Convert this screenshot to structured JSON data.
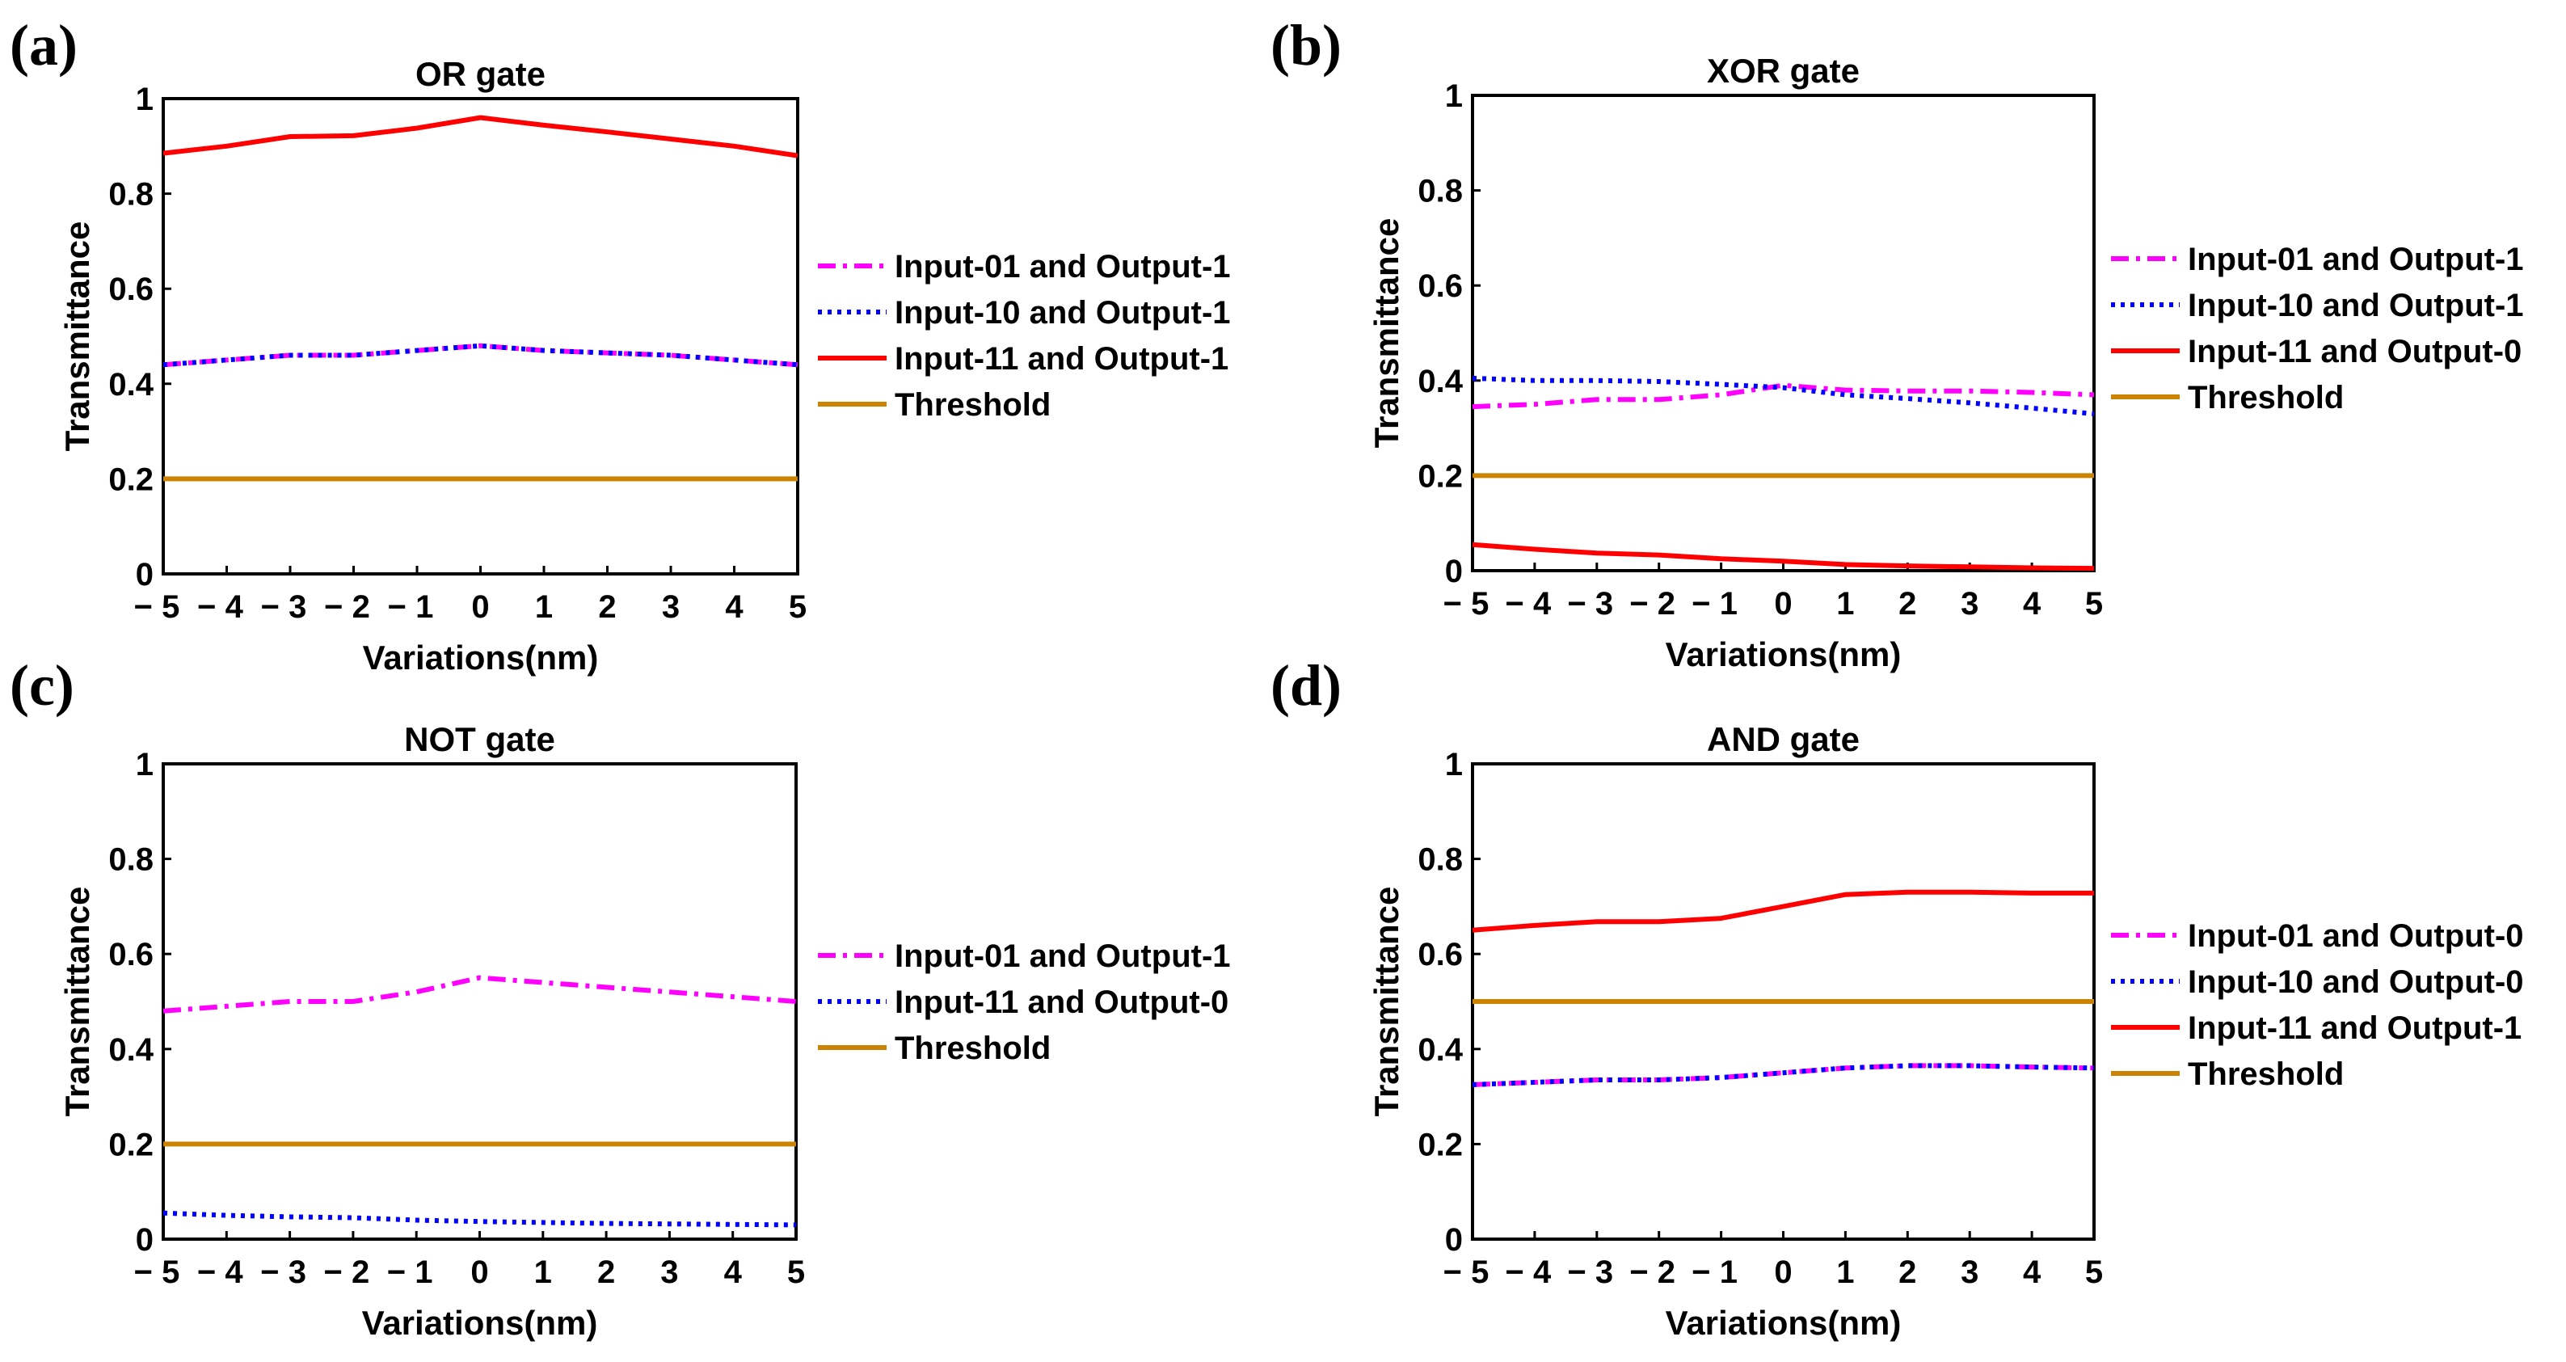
{
  "chart_data": [
    {
      "panel_label": "(a)",
      "type": "line",
      "title": "OR gate",
      "xlabel": "Variations(nm)",
      "ylabel": "Transmittance",
      "xlim": [
        -5,
        5
      ],
      "ylim": [
        0,
        1
      ],
      "x_ticks": [
        "− 5",
        "− 4",
        "− 3",
        "− 2",
        "− 1",
        "0",
        "1",
        "2",
        "3",
        "4",
        "5"
      ],
      "y_ticks": [
        "0",
        "0.2",
        "0.4",
        "0.6",
        "0.8",
        "1"
      ],
      "legend_position": "right",
      "x": [
        -5,
        -4,
        -3,
        -2,
        -1,
        0,
        1,
        2,
        3,
        4,
        5
      ],
      "series": [
        {
          "name": "Input-01 and Output-1",
          "color": "#ff00ff",
          "style": "dashdot",
          "values": [
            0.44,
            0.45,
            0.46,
            0.46,
            0.47,
            0.48,
            0.47,
            0.465,
            0.46,
            0.45,
            0.44
          ]
        },
        {
          "name": "Input-10 and Output-1",
          "color": "#0000ff",
          "style": "dotted",
          "values": [
            0.44,
            0.45,
            0.46,
            0.46,
            0.47,
            0.48,
            0.47,
            0.465,
            0.46,
            0.45,
            0.44
          ]
        },
        {
          "name": "Input-11 and Output-1",
          "color": "#ff0000",
          "style": "solid",
          "values": [
            0.885,
            0.9,
            0.92,
            0.922,
            0.938,
            0.96,
            0.944,
            0.93,
            0.915,
            0.9,
            0.88
          ]
        },
        {
          "name": "Threshold",
          "color": "#cc8400",
          "style": "solid",
          "values": [
            0.2,
            0.2,
            0.2,
            0.2,
            0.2,
            0.2,
            0.2,
            0.2,
            0.2,
            0.2,
            0.2
          ]
        }
      ]
    },
    {
      "panel_label": "(b)",
      "type": "line",
      "title": "XOR gate",
      "xlabel": "Variations(nm)",
      "ylabel": "Transmittance",
      "xlim": [
        -5,
        5
      ],
      "ylim": [
        0,
        1
      ],
      "x_ticks": [
        "− 5",
        "− 4",
        "− 3",
        "− 2",
        "− 1",
        "0",
        "1",
        "2",
        "3",
        "4",
        "5"
      ],
      "y_ticks": [
        "0",
        "0.2",
        "0.4",
        "0.6",
        "0.8",
        "1"
      ],
      "legend_position": "right",
      "x": [
        -5,
        -4,
        -3,
        -2,
        -1,
        0,
        1,
        2,
        3,
        4,
        5
      ],
      "series": [
        {
          "name": "Input-01 and Output-1",
          "color": "#ff00ff",
          "style": "dashdot",
          "values": [
            0.345,
            0.35,
            0.36,
            0.36,
            0.37,
            0.39,
            0.38,
            0.378,
            0.378,
            0.375,
            0.37
          ]
        },
        {
          "name": "Input-10 and Output-1",
          "color": "#0000ff",
          "style": "dotted",
          "values": [
            0.405,
            0.4,
            0.4,
            0.398,
            0.392,
            0.385,
            0.37,
            0.362,
            0.353,
            0.342,
            0.33
          ]
        },
        {
          "name": "Input-11 and Output-0",
          "color": "#ff0000",
          "style": "solid",
          "values": [
            0.055,
            0.045,
            0.037,
            0.033,
            0.025,
            0.02,
            0.013,
            0.01,
            0.008,
            0.006,
            0.005
          ]
        },
        {
          "name": "Threshold",
          "color": "#cc8400",
          "style": "solid",
          "values": [
            0.2,
            0.2,
            0.2,
            0.2,
            0.2,
            0.2,
            0.2,
            0.2,
            0.2,
            0.2,
            0.2
          ]
        }
      ]
    },
    {
      "panel_label": "(c)",
      "type": "line",
      "title": "NOT gate",
      "xlabel": "Variations(nm)",
      "ylabel": "Transmittance",
      "xlim": [
        -5,
        5
      ],
      "ylim": [
        0,
        1
      ],
      "x_ticks": [
        "− 5",
        "− 4",
        "− 3",
        "− 2",
        "− 1",
        "0",
        "1",
        "2",
        "3",
        "4",
        "5"
      ],
      "y_ticks": [
        "0",
        "0.2",
        "0.4",
        "0.6",
        "0.8",
        "1"
      ],
      "legend_position": "right",
      "x": [
        -5,
        -4,
        -3,
        -2,
        -1,
        0,
        1,
        2,
        3,
        4,
        5
      ],
      "series": [
        {
          "name": "Input-01 and Output-1",
          "color": "#ff00ff",
          "style": "dashdot",
          "values": [
            0.48,
            0.49,
            0.5,
            0.5,
            0.52,
            0.55,
            0.54,
            0.53,
            0.52,
            0.51,
            0.5
          ]
        },
        {
          "name": "Input-11 and Output-0",
          "color": "#0000ff",
          "style": "dotted",
          "values": [
            0.055,
            0.05,
            0.047,
            0.045,
            0.04,
            0.037,
            0.035,
            0.033,
            0.032,
            0.031,
            0.03
          ]
        },
        {
          "name": "Threshold",
          "color": "#cc8400",
          "style": "solid",
          "values": [
            0.2,
            0.2,
            0.2,
            0.2,
            0.2,
            0.2,
            0.2,
            0.2,
            0.2,
            0.2,
            0.2
          ]
        }
      ]
    },
    {
      "panel_label": "(d)",
      "type": "line",
      "title": "AND gate",
      "xlabel": "Variations(nm)",
      "ylabel": "Transmittance",
      "xlim": [
        -5,
        5
      ],
      "ylim": [
        0,
        1
      ],
      "x_ticks": [
        "− 5",
        "− 4",
        "− 3",
        "− 2",
        "− 1",
        "0",
        "1",
        "2",
        "3",
        "4",
        "5"
      ],
      "y_ticks": [
        "0",
        "0.2",
        "0.4",
        "0.6",
        "0.8",
        "1"
      ],
      "legend_position": "right",
      "x": [
        -5,
        -4,
        -3,
        -2,
        -1,
        0,
        1,
        2,
        3,
        4,
        5
      ],
      "series": [
        {
          "name": "Input-01 and Output-0",
          "color": "#ff00ff",
          "style": "dashdot",
          "values": [
            0.325,
            0.33,
            0.335,
            0.335,
            0.34,
            0.35,
            0.36,
            0.365,
            0.365,
            0.362,
            0.36
          ]
        },
        {
          "name": "Input-10 and Output-0",
          "color": "#0000ff",
          "style": "dotted",
          "values": [
            0.325,
            0.33,
            0.335,
            0.335,
            0.34,
            0.35,
            0.36,
            0.365,
            0.365,
            0.362,
            0.36
          ]
        },
        {
          "name": "Input-11 and Output-1",
          "color": "#ff0000",
          "style": "solid",
          "values": [
            0.65,
            0.66,
            0.668,
            0.668,
            0.675,
            0.7,
            0.725,
            0.73,
            0.73,
            0.728,
            0.728
          ]
        },
        {
          "name": "Threshold",
          "color": "#cc8400",
          "style": "solid",
          "values": [
            0.5,
            0.5,
            0.5,
            0.5,
            0.5,
            0.5,
            0.5,
            0.5,
            0.5,
            0.5,
            0.5
          ]
        }
      ]
    }
  ]
}
